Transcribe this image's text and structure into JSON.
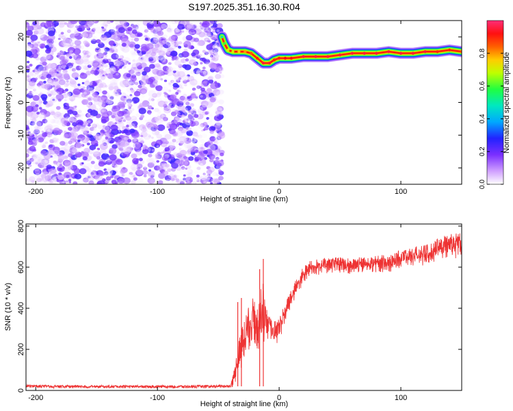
{
  "figure": {
    "title": "S197.2025.351.16.30.R04"
  },
  "chart_data": [
    {
      "type": "heatmap",
      "description_of_content": "spectrogram",
      "xlabel": "Height of straight line (km)",
      "ylabel": "Frequency (Hz)",
      "xlim": [
        -208,
        150
      ],
      "ylim": [
        -25,
        25
      ],
      "xticks": [
        -200,
        -100,
        0,
        100
      ],
      "xtick_labels": [
        "-200",
        "-100",
        "0",
        "100"
      ],
      "yticks": [
        -20,
        -10,
        0,
        10,
        20
      ],
      "ytick_labels": [
        "-20",
        "-10",
        "0",
        "10",
        "20"
      ],
      "noise_region_x": [
        -208,
        -47
      ],
      "noise_amplitude_range": [
        0.0,
        0.25
      ],
      "ridge": {
        "x": [
          -47,
          -45,
          -42,
          -38,
          -33,
          -28,
          -23,
          -18,
          -13,
          -8,
          -4,
          0,
          5,
          10,
          20,
          30,
          40,
          50,
          60,
          70,
          80,
          90,
          100,
          110,
          120,
          130,
          140,
          150
        ],
        "frequency": [
          20,
          18,
          16,
          15.5,
          15.5,
          15.5,
          15,
          13.5,
          12,
          12,
          13,
          13.5,
          13.5,
          13.5,
          14,
          14,
          14,
          14.5,
          15,
          15,
          15,
          15.5,
          15,
          15,
          15.5,
          15.5,
          16,
          15.5
        ],
        "amplitude": [
          0.5,
          0.6,
          0.7,
          0.7,
          0.75,
          0.8,
          0.85,
          0.9,
          0.95,
          0.95,
          0.9,
          0.9,
          0.92,
          0.92,
          0.95,
          0.95,
          0.95,
          0.95,
          0.95,
          0.95,
          0.95,
          0.95,
          0.95,
          0.95,
          0.95,
          0.9,
          0.9,
          0.85
        ]
      }
    },
    {
      "type": "line",
      "xlabel": "Height of straight line (km)",
      "ylabel": "SNR (10 * v/v)",
      "xlim": [
        -208,
        150
      ],
      "ylim": [
        0,
        810
      ],
      "xticks": [
        -200,
        -100,
        0,
        100
      ],
      "xtick_labels": [
        "-200",
        "-100",
        "0",
        "100"
      ],
      "yticks": [
        0,
        200,
        400,
        600,
        800
      ],
      "ytick_labels": [
        "0",
        "200",
        "400",
        "600",
        "800"
      ],
      "color": "#ee3333",
      "series": [
        {
          "x": [
            -208,
            -180,
            -150,
            -120,
            -90,
            -60,
            -40,
            -37,
            -34,
            -31,
            -28,
            -25,
            -22,
            -19,
            -16,
            -13,
            -10,
            -7,
            -4,
            -1,
            2,
            5,
            8,
            11,
            14,
            17,
            20,
            25,
            30,
            35,
            40,
            50,
            60,
            70,
            80,
            90,
            100,
            110,
            120,
            130,
            140,
            150
          ],
          "values": [
            20,
            18,
            18,
            18,
            18,
            18,
            20,
            60,
            140,
            200,
            260,
            300,
            330,
            330,
            320,
            360,
            300,
            280,
            270,
            290,
            330,
            380,
            420,
            460,
            500,
            530,
            560,
            590,
            600,
            600,
            610,
            610,
            605,
            610,
            615,
            620,
            640,
            650,
            660,
            680,
            700,
            710
          ],
          "noise_amplitude": [
            8,
            8,
            8,
            8,
            8,
            8,
            8,
            40,
            80,
            110,
            120,
            110,
            120,
            130,
            150,
            180,
            90,
            80,
            70,
            60,
            55,
            50,
            50,
            45,
            45,
            45,
            45,
            40,
            40,
            40,
            40,
            40,
            40,
            40,
            40,
            45,
            45,
            50,
            55,
            60,
            65,
            65
          ]
        }
      ],
      "spikes": [
        {
          "x": -13,
          "value": 640
        },
        {
          "x": -16,
          "value": 590
        },
        {
          "x": -34,
          "value": 430
        },
        {
          "x": -31,
          "value": 450
        }
      ]
    }
  ],
  "colorbar": {
    "label": "Normalized spectral amplitude",
    "range": [
      0.0,
      1.0
    ],
    "ticks": [
      0.0,
      0.2,
      0.4,
      0.6,
      0.8
    ],
    "tick_labels": [
      "0.0",
      "0.2",
      "0.4",
      "0.6",
      "0.8"
    ],
    "colors": [
      "#ffffff",
      "#a855f7",
      "#3a00ff",
      "#00bfff",
      "#00ffa0",
      "#60ff00",
      "#ffff00",
      "#ff8000",
      "#ff0000",
      "#ff3399"
    ]
  }
}
